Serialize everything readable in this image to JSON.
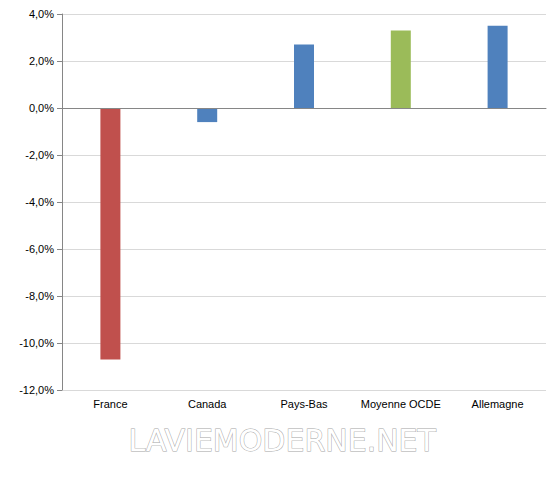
{
  "chart_data": {
    "type": "bar",
    "categories": [
      "France",
      "Canada",
      "Pays-Bas",
      "Moyenne OCDE",
      "Allemagne"
    ],
    "values": [
      -10.7,
      -0.6,
      2.7,
      3.3,
      3.5
    ],
    "colors": [
      "#c0504d",
      "#4f81bd",
      "#4f81bd",
      "#9bbb59",
      "#4f81bd"
    ],
    "ylim": [
      -12,
      4
    ],
    "yticks": [
      {
        "value": -12,
        "label": "-12,0%"
      },
      {
        "value": -10,
        "label": "-10,0%"
      },
      {
        "value": -8,
        "label": "-8,0%"
      },
      {
        "value": -6,
        "label": "-6,0%"
      },
      {
        "value": -4,
        "label": "-4,0%"
      },
      {
        "value": -2,
        "label": "-2,0%"
      },
      {
        "value": 0,
        "label": "0,0%"
      },
      {
        "value": 2,
        "label": "2,0%"
      },
      {
        "value": 4,
        "label": "4,0%"
      }
    ],
    "grid": true,
    "annotations": [
      "LAVIEMODERNE.NET"
    ]
  }
}
